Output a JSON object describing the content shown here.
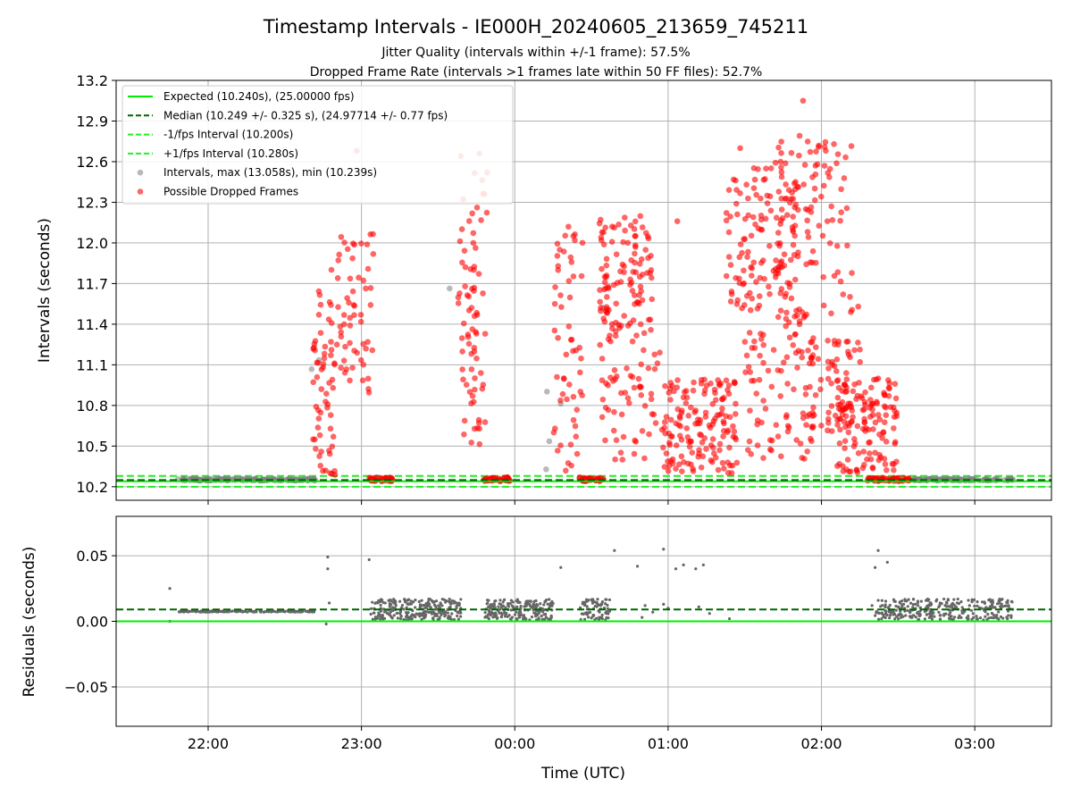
{
  "chart_data": [
    {
      "type": "scatter",
      "title": "Timestamp Intervals - IE000H_20240605_213659_745211",
      "subtitle_lines": [
        "Jitter Quality (intervals within +/-1 frame): 57.5%",
        "Dropped Frame Rate (intervals >1 frames late within 50 FF files): 52.7%"
      ],
      "xlabel": "",
      "ylabel": "Intervals (seconds)",
      "ylim": [
        10.1,
        13.2
      ],
      "xlim_hours": [
        21.4,
        27.5
      ],
      "yticks": [
        "10.2",
        "10.5",
        "10.8",
        "11.1",
        "11.4",
        "11.7",
        "12.0",
        "12.3",
        "12.6",
        "12.9",
        "13.2"
      ],
      "grid": true,
      "legend_position": "top-left",
      "legend": [
        "Expected (10.240s), (25.00000 fps)",
        "Median (10.249 +/- 0.325 s), (24.97714 +/- 0.77 fps)",
        "-1/fps Interval (10.200s)",
        "+1/fps Interval (10.280s)",
        "Intervals, max (13.058s), min (10.239s)",
        "Possible Dropped Frames"
      ],
      "reference_lines": {
        "expected": 10.24,
        "median": 10.249,
        "minus_one_fps": 10.2,
        "plus_one_fps": 10.28
      },
      "colors": {
        "expected": "#00ee00",
        "median": "#006400",
        "fps_band": "#22ee22",
        "intervals": "#808080",
        "dropped": "#ff0000"
      },
      "clusters_dropped": [
        [
          22.68,
          22.83,
          10.25,
          11.65,
          55,
          11
        ],
        [
          22.8,
          23.08,
          10.85,
          12.1,
          65,
          12
        ],
        [
          23.05,
          23.2,
          10.24,
          10.27,
          45,
          13
        ],
        [
          23.63,
          23.82,
          10.5,
          12.65,
          75,
          14
        ],
        [
          23.8,
          23.97,
          10.24,
          10.27,
          45,
          15
        ],
        [
          24.25,
          24.45,
          10.3,
          12.1,
          55,
          16
        ],
        [
          24.42,
          24.58,
          10.24,
          10.27,
          40,
          17
        ],
        [
          24.55,
          24.9,
          11.3,
          12.2,
          110,
          18
        ],
        [
          24.55,
          24.98,
          10.4,
          11.3,
          60,
          19
        ],
        [
          24.95,
          25.45,
          10.3,
          11.0,
          150,
          20
        ],
        [
          25.38,
          25.85,
          11.5,
          12.6,
          110,
          21
        ],
        [
          25.5,
          25.95,
          10.4,
          11.4,
          80,
          22
        ],
        [
          25.7,
          26.2,
          11.4,
          12.8,
          120,
          23
        ],
        [
          25.9,
          26.28,
          10.6,
          11.3,
          70,
          24
        ],
        [
          26.1,
          26.5,
          10.3,
          11.0,
          130,
          25
        ],
        [
          26.3,
          26.58,
          10.24,
          10.27,
          60,
          26
        ]
      ],
      "clusters_intervals": [
        [
          21.8,
          22.7,
          10.245,
          10.26,
          160,
          31
        ],
        [
          22.65,
          22.75,
          11.05,
          11.15,
          2,
          32
        ],
        [
          23.55,
          23.65,
          11.65,
          11.7,
          1,
          33
        ],
        [
          24.2,
          24.3,
          10.3,
          10.95,
          4,
          34
        ],
        [
          24.55,
          24.65,
          11.5,
          11.55,
          1,
          35
        ],
        [
          26.6,
          27.25,
          10.245,
          10.26,
          110,
          36
        ]
      ],
      "residuals": {
        "ylabel": "Residuals (seconds)",
        "xlabel": "Time (UTC)",
        "ylim": [
          -0.08,
          0.08
        ],
        "yticks": [
          "-0.05",
          "0.00",
          "0.05"
        ],
        "xticks": [
          "22:00",
          "23:00",
          "00:00",
          "01:00",
          "02:00",
          "03:00"
        ],
        "zero_line": 0.0,
        "median_line": 0.009,
        "point_color": "#666666",
        "clusters": [
          [
            21.8,
            22.7,
            0.007,
            0.008,
            170,
            41
          ],
          [
            23.05,
            23.65,
            0.001,
            0.017,
            260,
            42
          ],
          [
            23.8,
            24.25,
            0.001,
            0.017,
            200,
            43
          ],
          [
            24.42,
            24.62,
            0.001,
            0.017,
            80,
            44
          ],
          [
            26.35,
            27.25,
            0.001,
            0.017,
            300,
            45
          ]
        ],
        "outliers": [
          [
            21.75,
            0.025
          ],
          [
            21.75,
            0.0
          ],
          [
            22.78,
            0.049
          ],
          [
            22.78,
            0.04
          ],
          [
            22.79,
            0.014
          ],
          [
            22.77,
            -0.002
          ],
          [
            23.05,
            0.047
          ],
          [
            24.3,
            0.041
          ],
          [
            24.65,
            0.054
          ],
          [
            24.8,
            0.042
          ],
          [
            24.97,
            0.055
          ],
          [
            24.97,
            0.013
          ],
          [
            25.05,
            0.04
          ],
          [
            25.1,
            0.043
          ],
          [
            25.18,
            0.04
          ],
          [
            25.23,
            0.043
          ],
          [
            25.27,
            0.006
          ],
          [
            25.4,
            0.002
          ],
          [
            24.85,
            0.012
          ],
          [
            24.9,
            0.007
          ],
          [
            24.83,
            0.003
          ],
          [
            26.37,
            0.054
          ],
          [
            26.35,
            0.041
          ],
          [
            26.43,
            0.045
          ],
          [
            26.33,
            0.012
          ],
          [
            25.0,
            0.01
          ],
          [
            25.2,
            0.011
          ]
        ]
      }
    }
  ]
}
